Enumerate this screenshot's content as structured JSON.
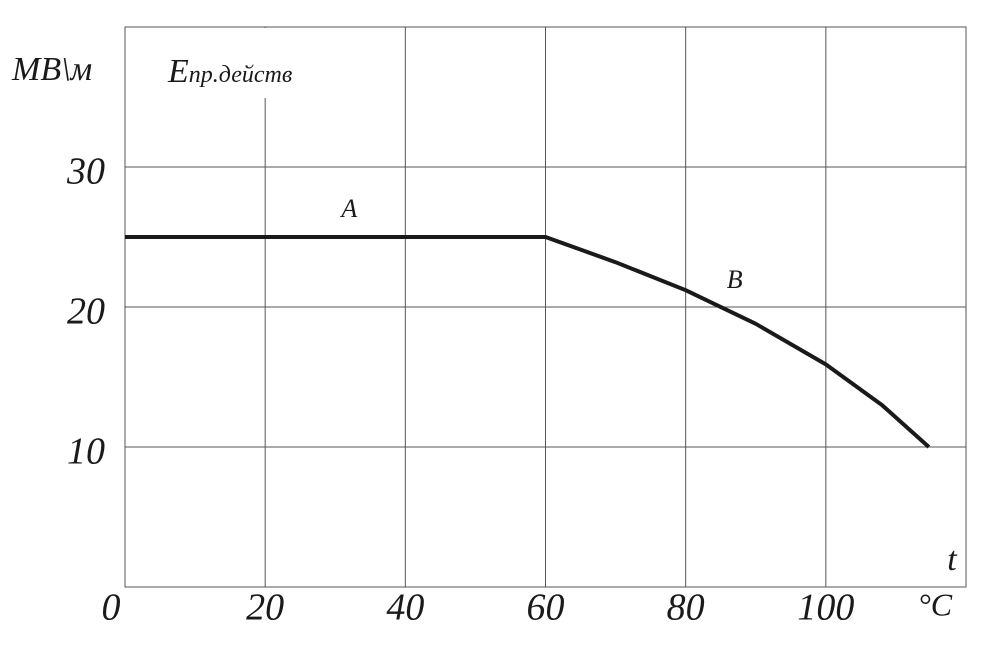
{
  "chart_data": {
    "type": "line",
    "ylabel": "МВ\\м",
    "y_quantity": "E",
    "y_quantity_sub": "пр.действ",
    "xlabel": "t",
    "x_unit": "°C",
    "annotations": [
      "A",
      "B"
    ],
    "x": [
      0,
      60,
      70,
      80,
      90,
      100,
      108,
      114.7
    ],
    "values": [
      25,
      25,
      23.2,
      21.2,
      18.8,
      15.9,
      13,
      10
    ],
    "color": "#1a1a1a",
    "xlim": [
      0,
      120
    ],
    "ylim": [
      0,
      40
    ],
    "xticks": [
      0,
      20,
      40,
      60,
      80,
      100
    ],
    "yticks": [
      10,
      20,
      30
    ],
    "grid": true
  }
}
